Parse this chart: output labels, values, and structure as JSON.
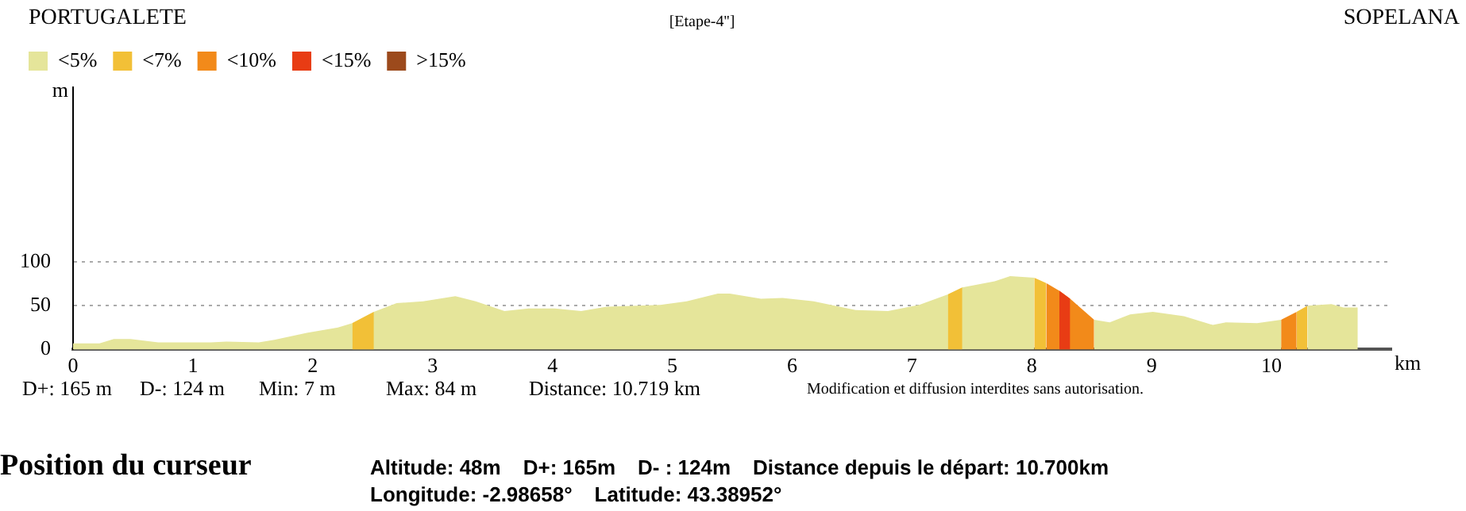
{
  "chart_data": {
    "type": "area",
    "title": "[Etape-4'']",
    "xlabel": "km",
    "ylabel": "m",
    "x": [
      0,
      0.22,
      0.34,
      0.48,
      0.71,
      1.15,
      1.28,
      1.55,
      1.68,
      1.95,
      2.21,
      2.33,
      2.51,
      2.7,
      2.92,
      3.19,
      3.36,
      3.6,
      3.8,
      4.02,
      4.24,
      4.46,
      4.9,
      5.12,
      5.38,
      5.48,
      5.74,
      5.92,
      6.18,
      6.53,
      6.8,
      7.06,
      7.3,
      7.42,
      7.69,
      7.82,
      8.02,
      8.12,
      8.23,
      8.32,
      8.52,
      8.65,
      8.82,
      9.01,
      9.27,
      9.51,
      9.62,
      9.88,
      10.08,
      10.21,
      10.3,
      10.5,
      10.6,
      10.72
    ],
    "series": [
      {
        "name": "<5%",
        "color": "#e5e59a",
        "values": [
          7,
          7,
          12,
          12,
          8,
          8,
          9,
          8,
          11,
          19,
          25,
          30,
          43,
          53,
          55,
          61,
          55,
          44,
          47,
          47,
          44,
          49,
          51,
          55,
          64,
          64,
          58,
          59,
          55,
          45,
          44,
          51,
          63,
          71,
          78,
          84,
          82,
          null,
          null,
          null,
          34,
          31,
          40,
          43,
          38,
          28,
          31,
          30,
          34,
          null,
          50,
          52,
          48,
          48
        ]
      },
      {
        "name": "<7%",
        "color": "#f2c037",
        "values": [
          null,
          null,
          null,
          null,
          null,
          null,
          null,
          null,
          null,
          null,
          null,
          30,
          43,
          null,
          null,
          null,
          null,
          null,
          null,
          null,
          null,
          null,
          null,
          null,
          null,
          null,
          null,
          null,
          null,
          null,
          null,
          null,
          63,
          71,
          null,
          null,
          82,
          76,
          null,
          null,
          null,
          null,
          null,
          null,
          null,
          null,
          null,
          null,
          null,
          43,
          50,
          null,
          null,
          null
        ]
      },
      {
        "name": "<10%",
        "color": "#f28a1a",
        "values": [
          null,
          null,
          null,
          null,
          null,
          null,
          null,
          null,
          null,
          null,
          null,
          null,
          null,
          null,
          null,
          null,
          null,
          null,
          null,
          null,
          null,
          null,
          null,
          null,
          null,
          null,
          null,
          null,
          null,
          null,
          null,
          null,
          null,
          null,
          null,
          null,
          null,
          76,
          67,
          58,
          34,
          null,
          null,
          null,
          null,
          null,
          null,
          null,
          34,
          43,
          null,
          null,
          null,
          null
        ]
      },
      {
        "name": "<15%",
        "color": "#e83c14",
        "values": [
          null,
          null,
          null,
          null,
          null,
          null,
          null,
          null,
          null,
          null,
          null,
          null,
          null,
          null,
          null,
          null,
          null,
          null,
          null,
          null,
          null,
          null,
          null,
          null,
          null,
          null,
          null,
          null,
          null,
          null,
          null,
          null,
          null,
          null,
          null,
          null,
          null,
          null,
          67,
          58,
          null,
          null,
          null,
          null,
          null,
          null,
          null,
          null,
          null,
          null,
          null,
          null,
          null,
          null
        ]
      },
      {
        "name": ">15%",
        "color": "#9c4a1c",
        "values": [
          null,
          null,
          null,
          null,
          null,
          null,
          null,
          null,
          null,
          null,
          null,
          null,
          null,
          null,
          null,
          null,
          null,
          null,
          null,
          null,
          null,
          null,
          null,
          null,
          null,
          null,
          null,
          null,
          null,
          null,
          null,
          null,
          null,
          null,
          null,
          null,
          null,
          null,
          null,
          null,
          null,
          null,
          null,
          null,
          null,
          null,
          null,
          null,
          null,
          null,
          null,
          null,
          null,
          null
        ]
      }
    ],
    "xlim": [
      0,
      11
    ],
    "xticks": [
      0,
      1,
      2,
      3,
      4,
      5,
      6,
      7,
      8,
      9,
      10
    ],
    "ylim": [
      0,
      300
    ],
    "yticks": [
      0,
      50,
      100
    ],
    "grid": "y",
    "legend": "top left",
    "marker": "none",
    "annotations": [
      "PORTUGALETE",
      "SOPELANA",
      "D+: 165 m",
      "D-: 124 m",
      "Min: 7 m",
      "Max: 84 m",
      "Distance: 10.719 km",
      "Modification et diffusion interdites sans autorisation.",
      "Position du curseur",
      "Altitude: 48m",
      "D+: 165m",
      "D- : 124m",
      "Distance depuis le départ: 10.700km",
      "Longitude: -2.98658°",
      "Latitude: 43.38952°"
    ]
  }
}
